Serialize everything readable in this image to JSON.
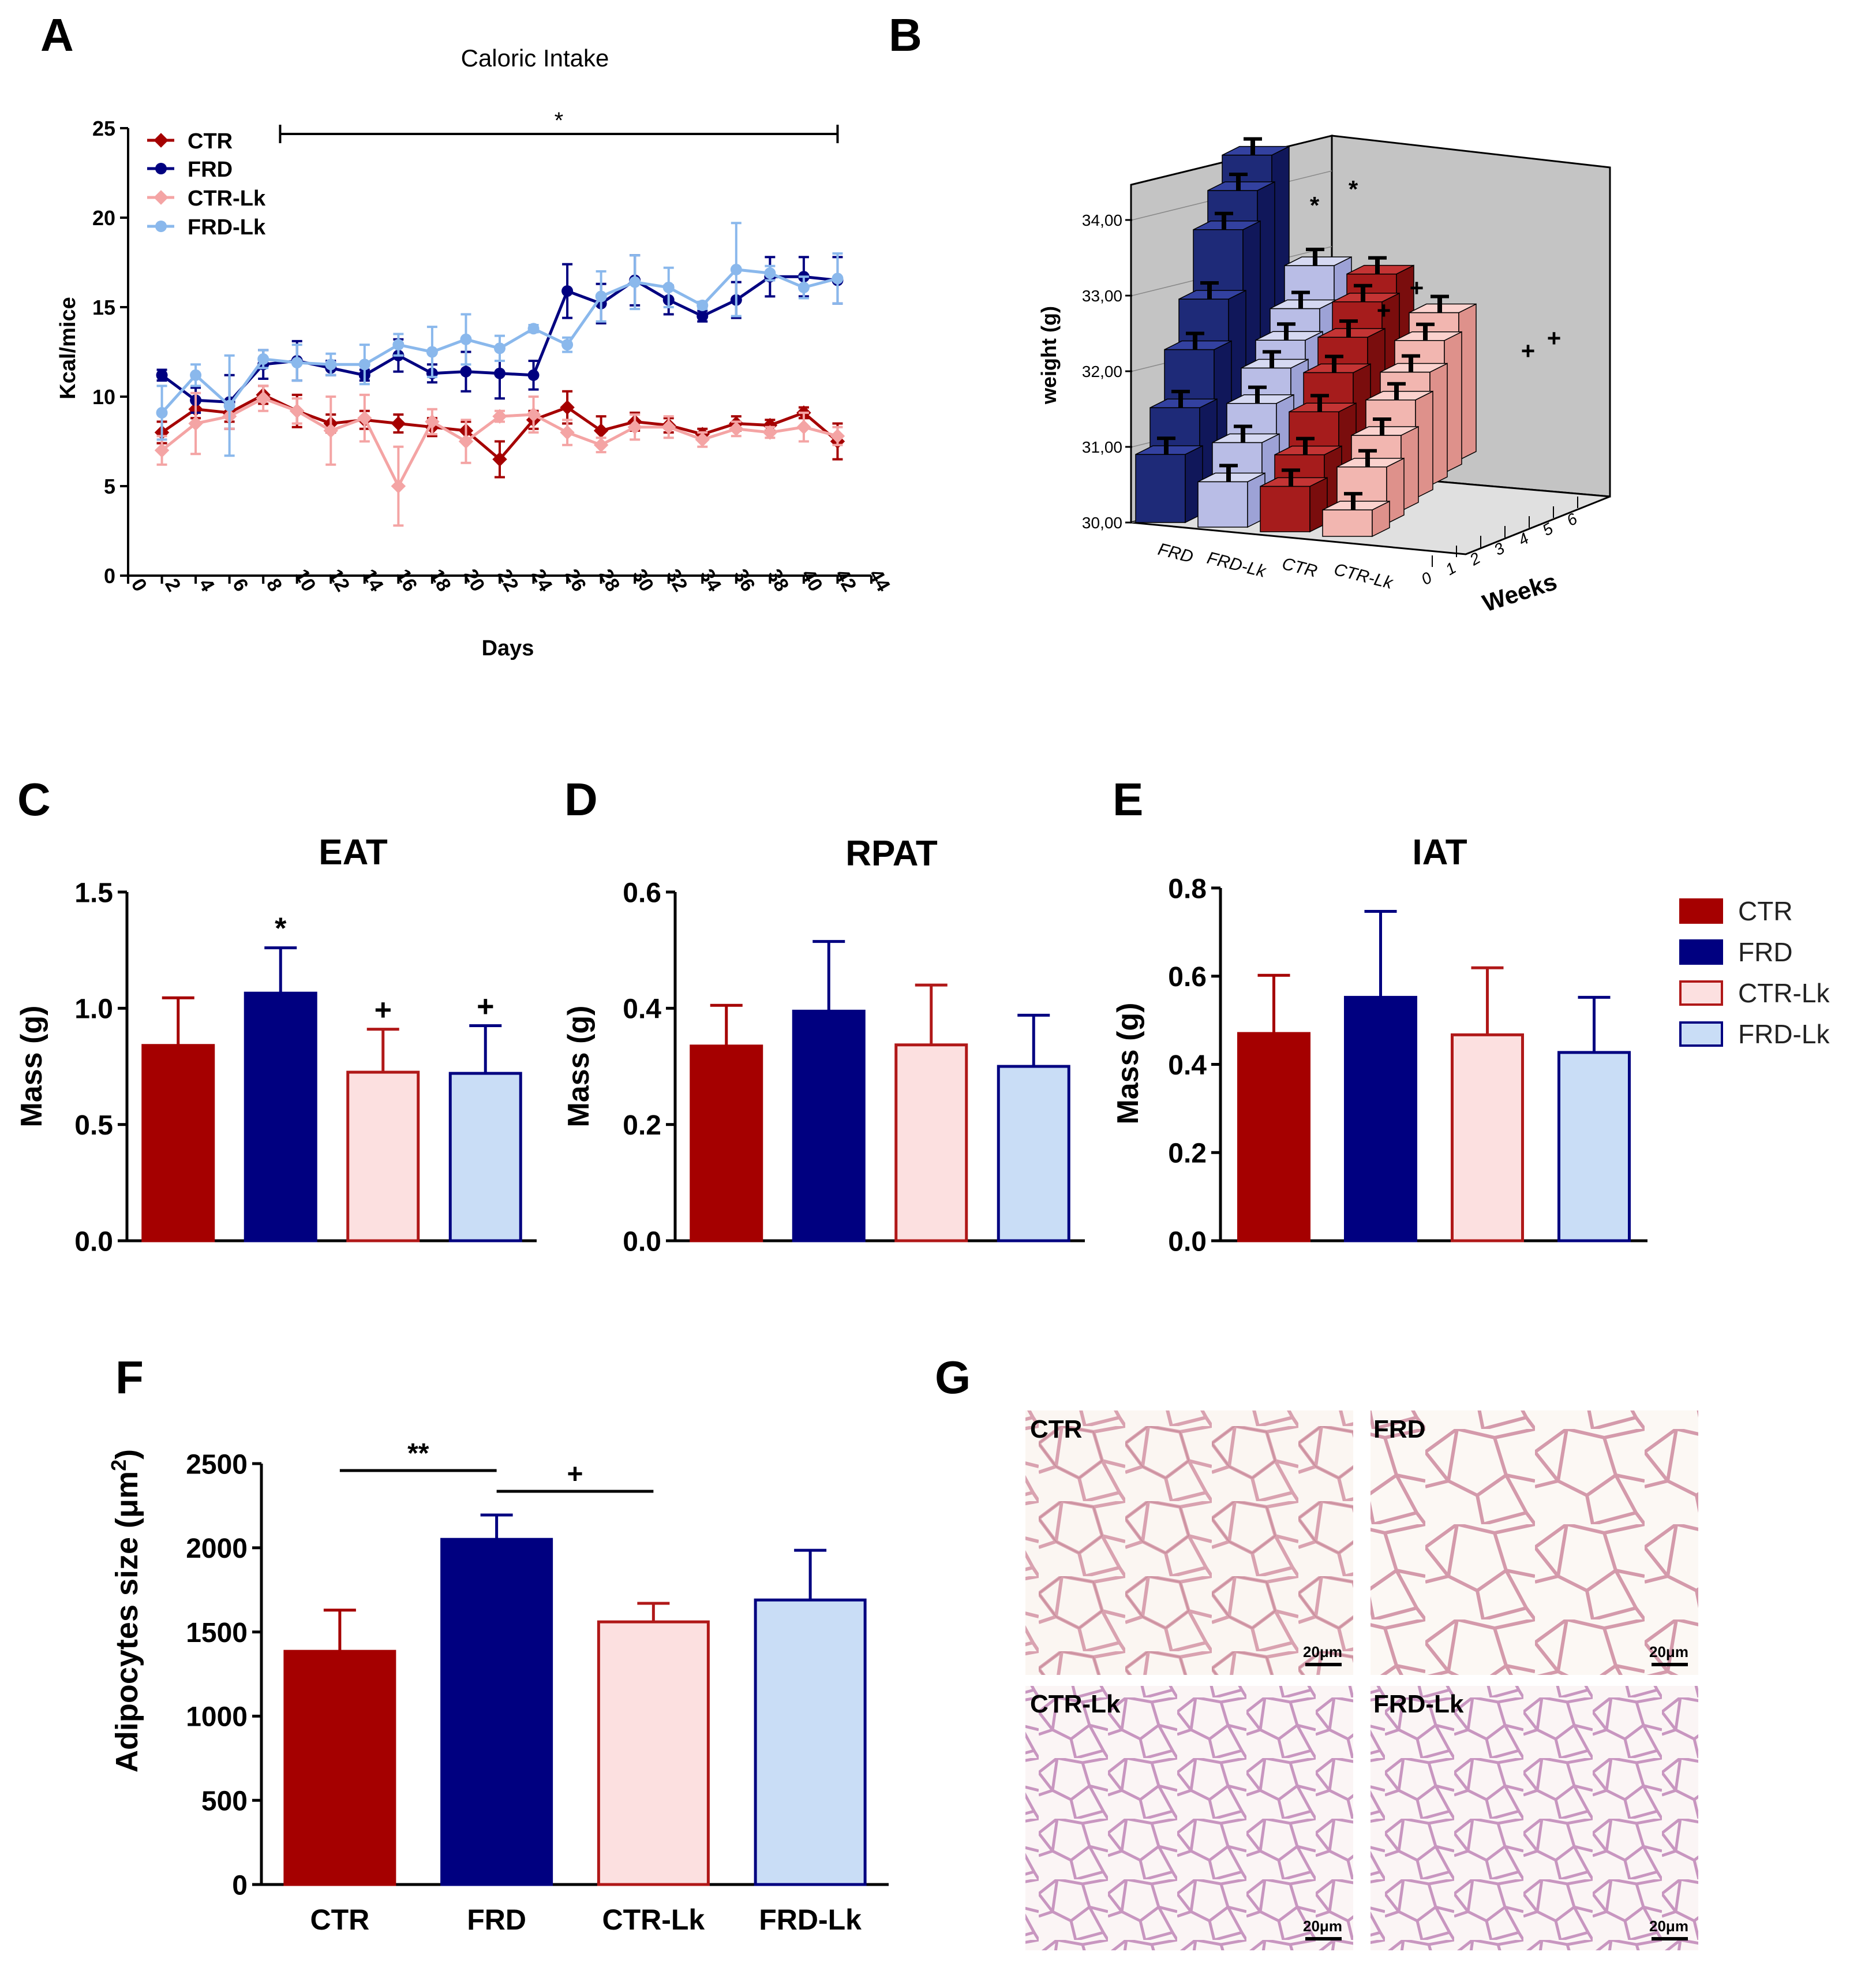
{
  "colors": {
    "ctr": "#a50000",
    "frd": "#000080",
    "ctr_lk": "#fce0e0",
    "ctr_lk_line": "#f4a4a4",
    "frd_lk": "#c9ddf6",
    "frd_lk_line": "#8ab8ec",
    "ctr_lk_edge": "#b01818",
    "frd_lk_edge": "#000080"
  },
  "panel_letters": {
    "a": "A",
    "b": "B",
    "c": "C",
    "d": "D",
    "e": "E",
    "f": "F",
    "g": "G"
  },
  "chart_data": [
    {
      "id": "A",
      "type": "line",
      "title": "Caloric Intake",
      "xlabel": "Days",
      "ylabel": "Kcal/mice",
      "xlim": [
        0,
        44
      ],
      "ylim": [
        0,
        25
      ],
      "x_ticks": [
        0,
        2,
        4,
        6,
        8,
        10,
        12,
        14,
        16,
        18,
        20,
        22,
        24,
        26,
        28,
        30,
        32,
        34,
        36,
        38,
        40,
        42,
        44
      ],
      "y_ticks": [
        0,
        5,
        10,
        15,
        20,
        25
      ],
      "x": [
        2,
        4,
        6,
        8,
        10,
        12,
        14,
        16,
        18,
        20,
        22,
        24,
        26,
        28,
        30,
        32,
        34,
        36,
        38,
        40,
        42
      ],
      "series": [
        {
          "name": "CTR",
          "color": "ctr",
          "marker": "diamond",
          "values": [
            8.0,
            9.3,
            9.1,
            10.1,
            9.2,
            8.5,
            8.7,
            8.5,
            8.3,
            8.1,
            6.5,
            8.7,
            9.4,
            8.1,
            8.6,
            8.4,
            7.9,
            8.5,
            8.4,
            9.1,
            7.5
          ],
          "errors": [
            0.6,
            0.5,
            0.5,
            0.5,
            0.9,
            0.5,
            0.5,
            0.5,
            0.5,
            0.5,
            1.0,
            0.5,
            0.9,
            0.8,
            0.5,
            0.4,
            0.3,
            0.4,
            0.3,
            0.3,
            1.0
          ]
        },
        {
          "name": "FRD",
          "color": "frd",
          "marker": "circle",
          "values": [
            11.2,
            9.8,
            9.7,
            11.8,
            12.0,
            11.6,
            11.2,
            12.3,
            11.3,
            11.4,
            11.3,
            11.2,
            15.9,
            15.2,
            16.5,
            15.4,
            14.5,
            15.4,
            16.7,
            16.7,
            16.5
          ],
          "errors": [
            0.3,
            0.7,
            1.5,
            0.8,
            1.1,
            0.4,
            0.3,
            0.9,
            0.5,
            1.1,
            1.4,
            0.8,
            1.5,
            1.1,
            1.4,
            0.8,
            0.3,
            1.0,
            1.1,
            1.1,
            1.3
          ]
        },
        {
          "name": "CTR-Lk",
          "color": "ctr_lk_line",
          "marker": "diamond",
          "values": [
            7.0,
            8.5,
            8.9,
            9.9,
            9.2,
            8.1,
            8.8,
            5.0,
            8.6,
            7.5,
            8.9,
            9.0,
            8.0,
            7.3,
            8.3,
            8.3,
            7.6,
            8.2,
            8.0,
            8.3,
            7.8
          ],
          "errors": [
            0.8,
            1.7,
            0.7,
            0.7,
            0.7,
            1.9,
            1.3,
            2.2,
            0.7,
            1.2,
            0.3,
            1.0,
            0.7,
            0.4,
            0.7,
            0.6,
            0.4,
            0.4,
            0.3,
            0.8,
            0.5
          ]
        },
        {
          "name": "FRD-Lk",
          "color": "frd_lk_line",
          "marker": "circle",
          "values": [
            9.1,
            11.2,
            9.5,
            12.1,
            11.9,
            11.8,
            11.8,
            12.9,
            12.5,
            13.2,
            12.7,
            13.8,
            12.9,
            15.6,
            16.4,
            16.1,
            15.1,
            17.1,
            16.9,
            16.1,
            16.6
          ],
          "errors": [
            1.5,
            0.6,
            2.8,
            0.5,
            1.0,
            0.6,
            1.1,
            0.6,
            1.4,
            1.4,
            0.7,
            0.2,
            0.4,
            1.4,
            1.5,
            1.1,
            0.2,
            2.6,
            0.4,
            0.6,
            1.4
          ]
        }
      ],
      "significance": {
        "label": "*",
        "from_day": 9,
        "to_day": 42
      }
    },
    {
      "id": "B",
      "type": "bar3d",
      "ylabel": "weight (g)",
      "depth_label": "Weeks",
      "y_ticks": [
        "30,00",
        "31,00",
        "32,00",
        "33,00",
        "34,00"
      ],
      "ylim": [
        30,
        34.3
      ],
      "groups": [
        "FRD",
        "FRD-Lk",
        "CTR",
        "CTR-Lk"
      ],
      "weeks": [
        "0",
        "1",
        "2",
        "3",
        "4",
        "5",
        "6"
      ],
      "values": {
        "FRD": [
          30.9,
          31.35,
          31.95,
          32.45,
          33.2,
          33.55,
          33.85
        ],
        "FRD-Lk": [
          30.6,
          30.95,
          31.3,
          31.6,
          31.8,
          32.05,
          32.45
        ],
        "CTR": [
          30.6,
          30.85,
          31.25,
          31.6,
          31.9,
          32.2,
          32.4
        ],
        "CTR-Lk": [
          30.35,
          30.75,
          31.0,
          31.3,
          31.5,
          31.75,
          31.95
        ]
      },
      "annotations": [
        {
          "label": "*",
          "group": "FRD",
          "week": "5"
        },
        {
          "label": "*",
          "group": "FRD",
          "week": "6"
        },
        {
          "label": "+",
          "group": "FRD-Lk",
          "week": "6"
        },
        {
          "label": "+",
          "group": "FRD-Lk",
          "week": "5"
        },
        {
          "label": "+",
          "group": "CTR-Lk",
          "week": "5"
        },
        {
          "label": "+",
          "group": "CTR-Lk",
          "week": "6"
        }
      ]
    },
    {
      "id": "C",
      "type": "bar",
      "title": "EAT",
      "ylabel": "Mass (g)",
      "categories": [
        "CTR",
        "FRD",
        "CTR-Lk",
        "FRD-Lk"
      ],
      "values": [
        0.84,
        1.065,
        0.725,
        0.72
      ],
      "errors": [
        0.205,
        0.195,
        0.185,
        0.205
      ],
      "ylim": [
        0,
        1.5
      ],
      "y_ticks": [
        "0.0",
        "0.5",
        "1.0",
        "1.5"
      ],
      "annotations": [
        "",
        "*",
        "+",
        "+"
      ]
    },
    {
      "id": "D",
      "type": "bar",
      "title": "RPAT",
      "ylabel": "Mass (g)",
      "categories": [
        "CTR",
        "FRD",
        "CTR-Lk",
        "FRD-Lk"
      ],
      "values": [
        0.335,
        0.395,
        0.337,
        0.3
      ],
      "errors": [
        0.07,
        0.12,
        0.103,
        0.088
      ],
      "ylim": [
        0,
        0.6
      ],
      "y_ticks": [
        "0.0",
        "0.2",
        "0.4",
        "0.6"
      ],
      "annotations": [
        "",
        "",
        "",
        ""
      ]
    },
    {
      "id": "E",
      "type": "bar",
      "title": "IAT",
      "ylabel": "Mass (g)",
      "categories": [
        "CTR",
        "FRD",
        "CTR-Lk",
        "FRD-Lk"
      ],
      "values": [
        0.47,
        0.552,
        0.467,
        0.427
      ],
      "errors": [
        0.132,
        0.195,
        0.152,
        0.125
      ],
      "ylim": [
        0,
        0.8
      ],
      "y_ticks": [
        "0.0",
        "0.2",
        "0.4",
        "0.6",
        "0.8"
      ],
      "annotations": [
        "",
        "",
        "",
        ""
      ]
    },
    {
      "id": "F",
      "type": "bar",
      "ylabel": "Adipocytes size (μm",
      "ylabel_sup": "2",
      "ylabel_end": ")",
      "categories": [
        "CTR",
        "FRD",
        "CTR-Lk",
        "FRD-Lk"
      ],
      "values": [
        1385,
        2050,
        1560,
        1690
      ],
      "errors": [
        245,
        145,
        110,
        295
      ],
      "ylim": [
        0,
        2500
      ],
      "y_ticks": [
        "0",
        "500",
        "1000",
        "1500",
        "2000",
        "2500"
      ],
      "brackets": [
        {
          "label": "**",
          "from": "CTR",
          "to": "FRD"
        },
        {
          "label": "+",
          "from": "FRD",
          "to": "CTR-Lk"
        }
      ]
    }
  ],
  "legend_cdef": [
    "CTR",
    "FRD",
    "CTR-Lk",
    "FRD-Lk"
  ],
  "histology": {
    "panels": [
      {
        "label": "CTR",
        "scale": "20μm"
      },
      {
        "label": "FRD",
        "scale": "20μm"
      },
      {
        "label": "CTR-Lk",
        "scale": "20μm"
      },
      {
        "label": "FRD-Lk",
        "scale": "20μm"
      }
    ]
  }
}
